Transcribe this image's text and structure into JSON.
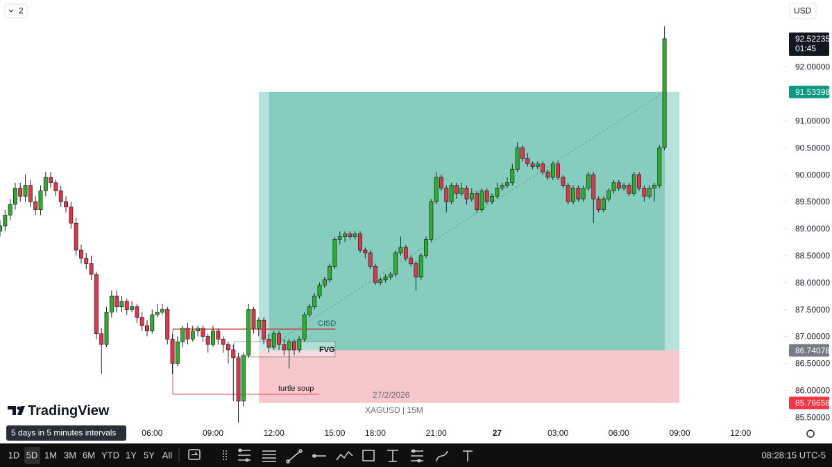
{
  "chart_data": {
    "type": "candlestick",
    "symbol": "XAGUSD | 15M",
    "date_label": "27/2/2026",
    "countdown": "01:45",
    "categories": [
      null,
      null,
      null,
      null,
      null,
      null,
      null,
      null,
      null,
      null,
      null,
      null,
      null,
      null,
      null,
      null,
      null,
      null,
      null,
      null,
      null,
      null,
      null,
      null,
      null,
      null,
      null,
      null,
      null,
      null,
      "06:00",
      null,
      null,
      null,
      null,
      null,
      null,
      null,
      null,
      null,
      null,
      null,
      "09:00",
      null,
      null,
      null,
      null,
      null,
      null,
      null,
      null,
      null,
      null,
      null,
      "12:00",
      null,
      null,
      null,
      null,
      null,
      null,
      null,
      null,
      null,
      null,
      null,
      "15:00",
      null,
      null,
      null,
      null,
      null,
      null,
      null,
      "18:00",
      null,
      null,
      null,
      null,
      null,
      null,
      null,
      null,
      null,
      null,
      null,
      "21:00",
      null,
      null,
      null,
      null,
      null,
      null,
      null,
      null,
      null,
      null,
      null,
      "27",
      null,
      null,
      null,
      null,
      null,
      null,
      null,
      null,
      null,
      null,
      null,
      "03:00",
      null,
      null,
      null,
      null,
      null,
      null,
      null,
      null,
      null,
      null,
      null,
      "06:00",
      null,
      null,
      null,
      null,
      null,
      null,
      null,
      null,
      null
    ],
    "extra_time_labels": [
      "09:00",
      "12:00"
    ],
    "open": [
      88.95,
      89.05,
      89.25,
      89.45,
      89.75,
      89.6,
      89.8,
      89.5,
      89.35,
      89.7,
      89.95,
      89.85,
      89.7,
      89.5,
      89.4,
      89.1,
      88.6,
      88.45,
      88.35,
      88.15,
      87.05,
      86.85,
      87.45,
      87.75,
      87.55,
      87.65,
      87.5,
      87.55,
      87.35,
      87.2,
      87.1,
      87.4,
      87.45,
      87.5,
      86.95,
      86.5,
      86.9,
      87.15,
      86.95,
      87.1,
      87.15,
      87.0,
      86.85,
      87.1,
      86.95,
      86.85,
      86.75,
      86.6,
      85.8,
      86.65,
      87.5,
      87.15,
      87.3,
      86.95,
      86.8,
      87.05,
      86.85,
      86.75,
      86.9,
      86.75,
      86.95,
      87.4,
      87.55,
      87.75,
      87.95,
      88.05,
      88.3,
      88.8,
      88.85,
      88.9,
      88.85,
      88.9,
      88.6,
      88.55,
      88.3,
      88.0,
      88.05,
      88.1,
      88.15,
      88.55,
      88.65,
      88.45,
      88.35,
      88.1,
      88.5,
      88.8,
      89.5,
      89.95,
      89.75,
      89.5,
      89.8,
      89.65,
      89.75,
      89.55,
      89.65,
      89.35,
      89.7,
      89.5,
      89.6,
      89.75,
      89.8,
      89.85,
      90.1,
      90.5,
      90.3,
      90.2,
      90.15,
      90.2,
      90.05,
      89.95,
      90.2,
      89.95,
      89.8,
      89.5,
      89.75,
      89.55,
      89.75,
      90.0,
      89.55,
      89.35,
      89.55,
      89.7,
      89.85,
      89.75,
      89.8,
      89.65,
      90.0,
      89.75,
      89.6,
      89.75,
      89.8,
      90.5
    ],
    "high": [
      89.15,
      89.35,
      89.55,
      89.85,
      89.85,
      90.0,
      89.9,
      89.6,
      89.8,
      90.05,
      90.05,
      89.9,
      89.8,
      89.6,
      89.5,
      89.2,
      88.7,
      88.55,
      88.5,
      88.2,
      87.15,
      87.55,
      87.85,
      87.85,
      87.75,
      87.7,
      87.65,
      87.6,
      87.45,
      87.3,
      87.5,
      87.6,
      87.6,
      87.55,
      87.05,
      87.0,
      87.2,
      87.25,
      87.2,
      87.2,
      87.2,
      87.05,
      87.2,
      87.15,
      87.0,
      86.9,
      86.85,
      86.7,
      86.7,
      87.6,
      87.55,
      87.35,
      87.35,
      87.05,
      87.1,
      87.1,
      86.95,
      86.95,
      86.95,
      87.0,
      87.45,
      87.6,
      87.8,
      88.0,
      88.1,
      88.35,
      88.85,
      88.95,
      88.95,
      88.95,
      88.95,
      88.95,
      88.65,
      88.6,
      88.35,
      88.1,
      88.15,
      88.2,
      88.6,
      88.85,
      88.7,
      88.5,
      88.4,
      88.55,
      88.85,
      89.55,
      90.05,
      90.0,
      89.8,
      89.85,
      89.85,
      89.85,
      89.8,
      89.75,
      89.7,
      89.75,
      89.75,
      89.65,
      89.85,
      89.85,
      89.95,
      90.2,
      90.6,
      90.55,
      90.4,
      90.25,
      90.25,
      90.25,
      90.1,
      90.25,
      90.25,
      90.0,
      89.85,
      89.8,
      89.8,
      89.8,
      90.05,
      90.05,
      89.6,
      89.6,
      89.75,
      89.9,
      89.9,
      89.85,
      89.85,
      90.05,
      90.05,
      89.8,
      89.8,
      89.85,
      90.55,
      92.75
    ],
    "low": [
      88.85,
      88.95,
      89.15,
      89.35,
      89.5,
      89.5,
      89.4,
      89.25,
      89.25,
      89.6,
      89.75,
      89.6,
      89.4,
      89.3,
      89.0,
      88.5,
      88.35,
      88.25,
      88.05,
      86.95,
      86.3,
      86.8,
      87.35,
      87.45,
      87.45,
      87.4,
      87.45,
      87.25,
      87.1,
      87.0,
      87.05,
      87.35,
      87.4,
      86.85,
      86.3,
      86.45,
      86.8,
      86.85,
      86.9,
      87.0,
      86.9,
      86.7,
      86.8,
      86.85,
      86.7,
      86.5,
      85.8,
      85.4,
      85.7,
      86.6,
      87.05,
      87.0,
      86.85,
      86.7,
      86.75,
      86.75,
      86.65,
      86.4,
      86.65,
      86.7,
      86.9,
      87.35,
      87.5,
      87.7,
      87.9,
      88.0,
      88.25,
      88.7,
      88.75,
      88.8,
      88.8,
      88.55,
      88.45,
      88.25,
      87.95,
      87.95,
      88.0,
      88.05,
      88.1,
      88.5,
      88.4,
      88.3,
      87.85,
      88.05,
      88.45,
      88.75,
      89.45,
      89.7,
      89.3,
      89.45,
      89.55,
      89.6,
      89.45,
      89.5,
      89.3,
      89.3,
      89.45,
      89.45,
      89.55,
      89.7,
      89.75,
      89.8,
      90.05,
      90.25,
      90.15,
      90.1,
      90.1,
      90.0,
      89.9,
      89.9,
      89.9,
      89.75,
      89.45,
      89.45,
      89.5,
      89.5,
      89.7,
      89.1,
      89.3,
      89.3,
      89.5,
      89.65,
      89.7,
      89.7,
      89.6,
      89.6,
      89.7,
      89.5,
      89.55,
      89.5,
      89.75,
      90.45
    ],
    "close": [
      89.05,
      89.25,
      89.45,
      89.75,
      89.6,
      89.8,
      89.5,
      89.35,
      89.7,
      89.95,
      89.85,
      89.7,
      89.5,
      89.4,
      89.1,
      88.6,
      88.45,
      88.35,
      88.15,
      87.05,
      86.85,
      87.45,
      87.75,
      87.55,
      87.65,
      87.5,
      87.55,
      87.35,
      87.2,
      87.1,
      87.4,
      87.45,
      87.5,
      86.95,
      86.5,
      86.9,
      87.15,
      86.95,
      87.1,
      87.15,
      87.0,
      86.85,
      87.1,
      86.95,
      86.85,
      86.75,
      86.6,
      85.8,
      86.65,
      87.5,
      87.15,
      87.3,
      86.95,
      86.8,
      87.05,
      86.85,
      86.75,
      86.9,
      86.75,
      86.95,
      87.4,
      87.55,
      87.75,
      87.95,
      88.05,
      88.3,
      88.8,
      88.85,
      88.9,
      88.85,
      88.9,
      88.6,
      88.55,
      88.3,
      88.0,
      88.05,
      88.1,
      88.15,
      88.55,
      88.65,
      88.45,
      88.35,
      88.1,
      88.5,
      88.8,
      89.5,
      89.95,
      89.75,
      89.5,
      89.8,
      89.65,
      89.75,
      89.55,
      89.65,
      89.35,
      89.7,
      89.5,
      89.6,
      89.75,
      89.8,
      89.85,
      90.1,
      90.5,
      90.3,
      90.2,
      90.15,
      90.2,
      90.05,
      89.95,
      90.2,
      89.95,
      89.8,
      89.5,
      89.75,
      89.55,
      89.75,
      90.0,
      89.55,
      89.35,
      89.55,
      89.7,
      89.85,
      89.75,
      89.8,
      89.65,
      90.0,
      89.75,
      89.6,
      89.75,
      89.8,
      90.5,
      92.52235
    ],
    "up_color": "#2cb02c",
    "down_color": "#e5334b",
    "ylim": [
      85.04,
      93.24
    ],
    "yticks": [
      {
        "value": 85.5,
        "label": "85.50000"
      },
      {
        "value": 86.0,
        "label": "86.00000"
      },
      {
        "value": 86.5,
        "label": "86.50000"
      },
      {
        "value": 87.0,
        "label": "87.00000"
      },
      {
        "value": 87.5,
        "label": "87.50000"
      },
      {
        "value": 88.0,
        "label": "88.00000"
      },
      {
        "value": 88.5,
        "label": "88.50000"
      },
      {
        "value": 89.0,
        "label": "89.00000"
      },
      {
        "value": 89.5,
        "label": "89.50000"
      },
      {
        "value": 90.0,
        "label": "90.00000"
      },
      {
        "value": 90.5,
        "label": "90.50000"
      },
      {
        "value": 91.0,
        "label": "91.00000"
      },
      {
        "value": 91.5,
        "label": "91.50000"
      },
      {
        "value": 92.0,
        "label": "92.00000"
      }
    ],
    "position": {
      "take_profit": 91.53398,
      "entry": 86.74078,
      "stop": 85.76658
    },
    "annotations": {
      "cisd": "CISD",
      "fvg": "FVG",
      "turtle_soup": "turtle soup"
    }
  },
  "ui": {
    "interval_menu": "2",
    "currency": "USD",
    "brand": "TradingView",
    "tooltip": "5 days in 5 minutes intervals",
    "ranges": [
      "1D",
      "5D",
      "1M",
      "3M",
      "6M",
      "YTD",
      "1Y",
      "5Y",
      "All"
    ],
    "clock": "08:28:15 UTC-5"
  }
}
